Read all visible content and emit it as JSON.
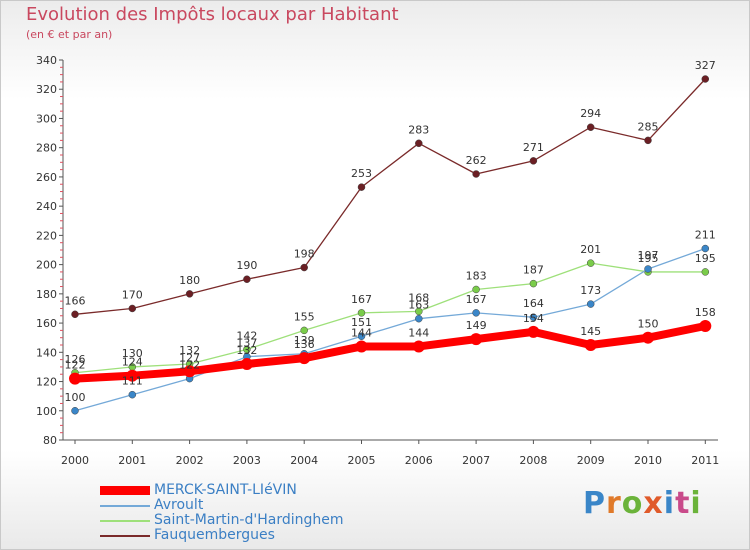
{
  "header": {
    "title": "Evolution des Impôts locaux par Habitant",
    "subtitle": "(en € et par an)"
  },
  "logo": {
    "text": "Proxiti"
  },
  "chart_data": {
    "type": "line",
    "title": "Evolution des Impôts locaux par Habitant",
    "subtitle": "(en € et par an)",
    "xlabel": "",
    "ylabel": "",
    "ylim": [
      80,
      340
    ],
    "yticks": [
      80,
      100,
      120,
      140,
      160,
      180,
      200,
      220,
      240,
      260,
      280,
      300,
      320,
      340
    ],
    "categories": [
      "2000",
      "2001",
      "2002",
      "2003",
      "2004",
      "2005",
      "2006",
      "2007",
      "2008",
      "2009",
      "2010",
      "2011"
    ],
    "grid": false,
    "legend_position": "bottom-left",
    "series": [
      {
        "name": "Fauquembergues",
        "color": "#7a2a2a",
        "marker_color": "#6b1f24",
        "values": [
          166,
          170,
          180,
          190,
          198,
          253,
          283,
          262,
          271,
          294,
          285,
          327
        ],
        "labels": [
          "166",
          "170",
          "180",
          "190",
          "198",
          "253",
          "283",
          "262",
          "271",
          "294",
          "285",
          "327"
        ]
      },
      {
        "name": "Saint-Martin-d'Hardinghem",
        "color": "#9ee07a",
        "marker_color": "#7acc4a",
        "values": [
          126,
          130,
          132,
          142,
          155,
          167,
          168,
          183,
          187,
          201,
          195,
          195
        ],
        "labels": [
          "126",
          "130",
          "132",
          "142",
          "155",
          "167",
          "168",
          "183",
          "187",
          "201",
          "195",
          "195"
        ]
      },
      {
        "name": "Avroult",
        "color": "#74a9d8",
        "marker_color": "#3a86c8",
        "values": [
          100,
          111,
          122,
          137,
          139,
          151,
          163,
          167,
          164,
          173,
          197,
          211
        ],
        "labels": [
          "100",
          "111",
          "122",
          "137",
          "139",
          "151",
          "163",
          "167",
          "164",
          "173",
          "197",
          "211"
        ]
      },
      {
        "name": "MERCK-SAINT-LIéVIN",
        "color": "#ff0000",
        "marker_color": "#ff0000",
        "values": [
          122,
          124,
          127,
          132,
          136,
          144,
          144,
          149,
          154,
          145,
          150,
          158
        ],
        "labels": [
          "122",
          "124",
          "127",
          "132",
          "136",
          "144",
          "144",
          "149",
          "154",
          "145",
          "150",
          "158"
        ]
      }
    ]
  }
}
